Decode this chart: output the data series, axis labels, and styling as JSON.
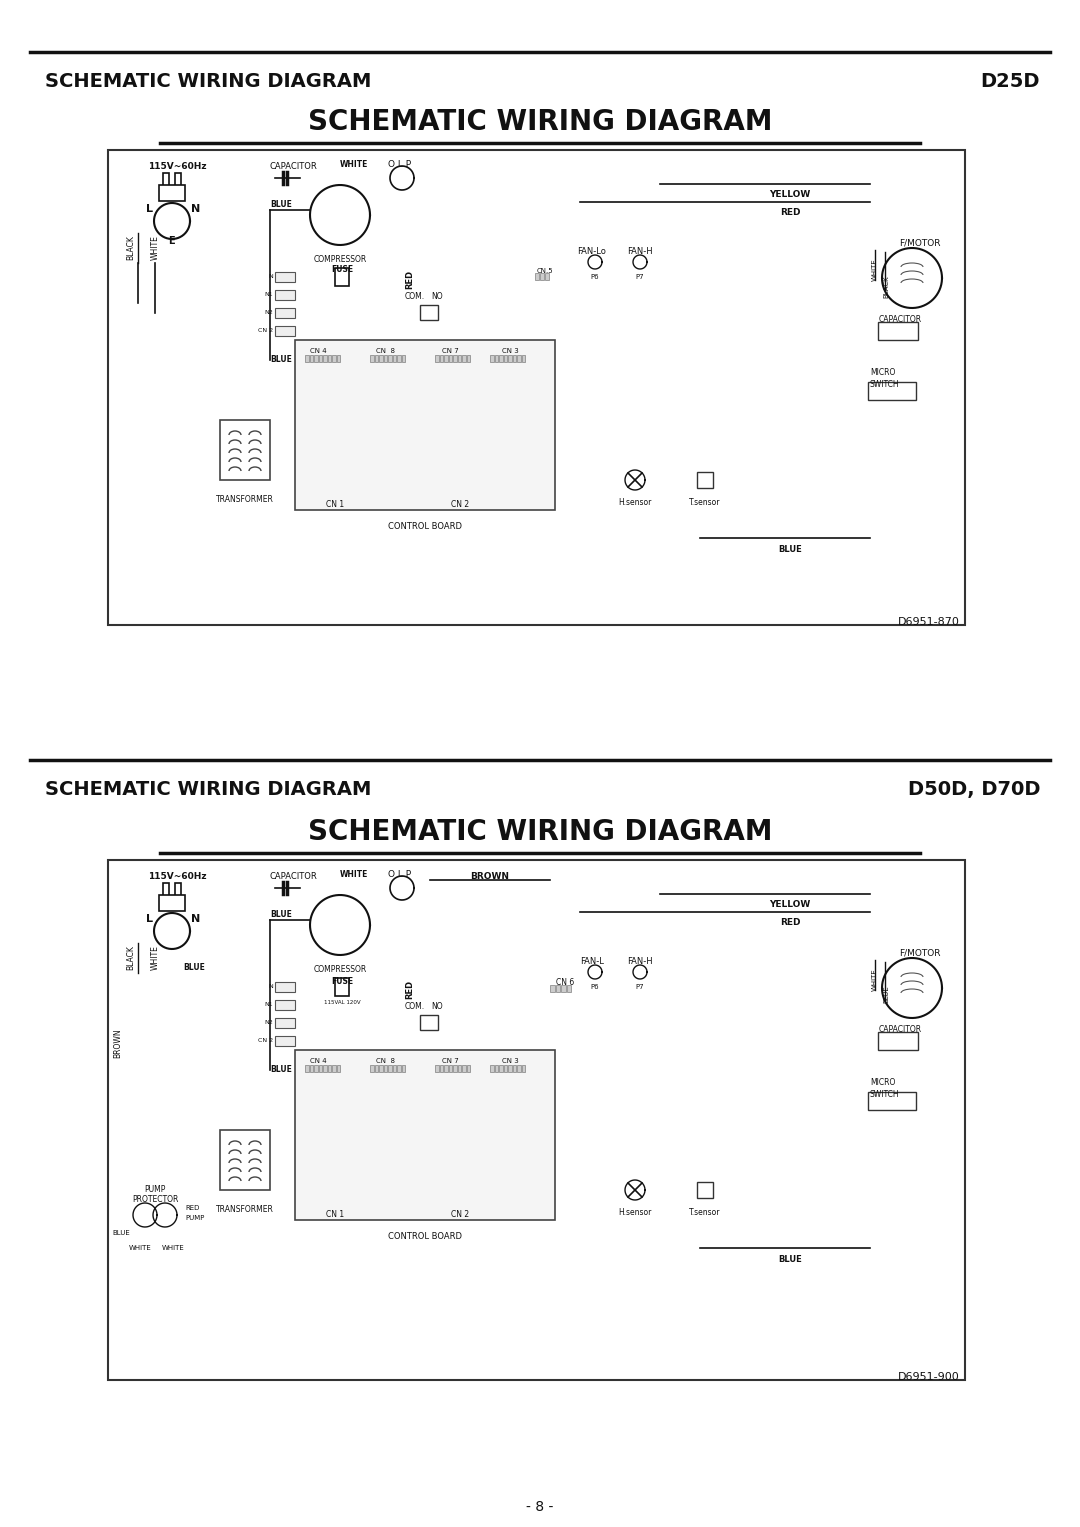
{
  "page_bg": "#ffffff",
  "header1_text": "SCHEMATIC WIRING DIAGRAM",
  "header1_model": "D25D",
  "header2_text": "SCHEMATIC WIRING DIAGRAM",
  "header2_model": "D50D, D70D",
  "title1": "SCHEMATIC WIRING DIAGRAM",
  "title2": "SCHEMATIC WIRING DIAGRAM",
  "diagram1_part": "D6951-870",
  "diagram2_part": "D6951-900",
  "page_number": "- 8 -",
  "line_color": "#333333",
  "header_font_size": 14,
  "title_font_size": 20
}
